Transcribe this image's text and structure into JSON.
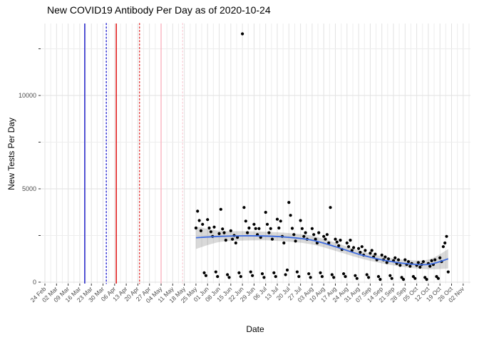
{
  "title": "New COVID19 Antibody Per Day as of 2020-10-24",
  "axes": {
    "x": {
      "label": "Date",
      "tick_labels": [
        "24 Feb",
        "02 Mar",
        "09 Mar",
        "16 Mar",
        "23 Mar",
        "30 Mar",
        "06 Apr",
        "13 Apr",
        "20 Apr",
        "27 Apr",
        "04 May",
        "11 May",
        "18 May",
        "25 May",
        "01 Jun",
        "08 Jun",
        "15 Jun",
        "22 Jun",
        "29 Jun",
        "06 Jul",
        "13 Jul",
        "20 Jul",
        "27 Jul",
        "03 Aug",
        "10 Aug",
        "17 Aug",
        "24 Aug",
        "31 Aug",
        "07 Sep",
        "14 Sep",
        "21 Sep",
        "28 Sep",
        "05 Oct",
        "12 Oct",
        "19 Oct",
        "26 Oct",
        "02 Nov"
      ]
    },
    "y": {
      "label": "New Tests Per Day",
      "tick_labels": [
        "0",
        "5000",
        "10000"
      ],
      "major_breaks": [
        0,
        5000,
        10000
      ],
      "minor_breaks": [
        2500,
        7500,
        12500
      ]
    }
  },
  "colors": {
    "point": "#000000",
    "smooth_line": "#3d6be0",
    "ci_band": "rgba(80,80,80,0.22)",
    "grid_major": "#e2e2e2",
    "grid_minor": "#ededed",
    "tick": "#333333",
    "tick_label": "#4d4d4d"
  },
  "event_lines": [
    {
      "name": "event-blue-solid",
      "date": "03-19",
      "color": "#1515c8",
      "style": "solid"
    },
    {
      "name": "event-blue-dotted",
      "date": "04-01",
      "color": "#2020d0",
      "style": "dotted"
    },
    {
      "name": "event-red-solid",
      "date": "04-07",
      "color": "#dd0000",
      "style": "solid"
    },
    {
      "name": "event-red-dotted",
      "date": "04-21",
      "color": "#e23b3b",
      "style": "dotted"
    },
    {
      "name": "event-pink-solid",
      "date": "05-04",
      "color": "#f9b4c0",
      "style": "solid"
    },
    {
      "name": "event-pink-dotted",
      "date": "05-17",
      "color": "#fbd0d8",
      "style": "dotted"
    }
  ],
  "chart_data": {
    "type": "scatter",
    "title": "New COVID19 Antibody Per Day as of 2020-10-24",
    "xlabel": "Date",
    "ylabel": "New Tests Per Day",
    "year": 2020,
    "x_range": [
      "02-24",
      "11-02"
    ],
    "ylim": [
      0,
      13900
    ],
    "grid": true,
    "points": [
      [
        "05-25",
        2900
      ],
      [
        "05-26",
        3800
      ],
      [
        "05-27",
        3300
      ],
      [
        "05-28",
        2750
      ],
      [
        "05-29",
        3100
      ],
      [
        "05-30",
        500
      ],
      [
        "05-31",
        350
      ],
      [
        "06-01",
        3350
      ],
      [
        "06-02",
        2900
      ],
      [
        "06-03",
        2700
      ],
      [
        "06-04",
        2450
      ],
      [
        "06-05",
        2950
      ],
      [
        "06-06",
        550
      ],
      [
        "06-07",
        300
      ],
      [
        "06-08",
        2600
      ],
      [
        "06-09",
        3900
      ],
      [
        "06-10",
        2850
      ],
      [
        "06-11",
        2650
      ],
      [
        "06-12",
        2250
      ],
      [
        "06-13",
        400
      ],
      [
        "06-14",
        250
      ],
      [
        "06-15",
        2750
      ],
      [
        "06-16",
        2300
      ],
      [
        "06-17",
        2500
      ],
      [
        "06-18",
        2100
      ],
      [
        "06-19",
        2400
      ],
      [
        "06-20",
        500
      ],
      [
        "06-21",
        300
      ],
      [
        "06-22",
        13300
      ],
      [
        "06-23",
        4000
      ],
      [
        "06-24",
        3270
      ],
      [
        "06-25",
        2650
      ],
      [
        "06-26",
        2900
      ],
      [
        "06-27",
        550
      ],
      [
        "06-28",
        350
      ],
      [
        "06-29",
        3100
      ],
      [
        "06-30",
        2870
      ],
      [
        "07-01",
        2550
      ],
      [
        "07-02",
        2870
      ],
      [
        "07-03",
        2400
      ],
      [
        "07-04",
        450
      ],
      [
        "07-05",
        250
      ],
      [
        "07-06",
        3740
      ],
      [
        "07-07",
        3100
      ],
      [
        "07-08",
        2650
      ],
      [
        "07-09",
        2870
      ],
      [
        "07-10",
        2300
      ],
      [
        "07-11",
        500
      ],
      [
        "07-12",
        300
      ],
      [
        "07-13",
        3370
      ],
      [
        "07-14",
        2900
      ],
      [
        "07-15",
        3270
      ],
      [
        "07-16",
        2450
      ],
      [
        "07-17",
        2100
      ],
      [
        "07-18",
        400
      ],
      [
        "07-19",
        650
      ],
      [
        "07-20",
        4270
      ],
      [
        "07-21",
        3580
      ],
      [
        "07-22",
        2880
      ],
      [
        "07-23",
        2550
      ],
      [
        "07-24",
        2200
      ],
      [
        "07-25",
        550
      ],
      [
        "07-26",
        300
      ],
      [
        "07-27",
        3300
      ],
      [
        "07-28",
        2870
      ],
      [
        "07-29",
        2450
      ],
      [
        "07-30",
        2650
      ],
      [
        "07-31",
        2300
      ],
      [
        "08-01",
        450
      ],
      [
        "08-02",
        250
      ],
      [
        "08-03",
        2870
      ],
      [
        "08-04",
        2550
      ],
      [
        "08-05",
        2300
      ],
      [
        "08-06",
        2100
      ],
      [
        "08-07",
        2650
      ],
      [
        "08-08",
        500
      ],
      [
        "08-09",
        300
      ],
      [
        "08-10",
        2450
      ],
      [
        "08-11",
        2300
      ],
      [
        "08-12",
        2550
      ],
      [
        "08-13",
        2100
      ],
      [
        "08-14",
        4000
      ],
      [
        "08-15",
        400
      ],
      [
        "08-16",
        250
      ],
      [
        "08-17",
        2300
      ],
      [
        "08-18",
        2150
      ],
      [
        "08-19",
        1950
      ],
      [
        "08-20",
        2250
      ],
      [
        "08-21",
        1750
      ],
      [
        "08-22",
        450
      ],
      [
        "08-23",
        300
      ],
      [
        "08-24",
        2100
      ],
      [
        "08-25",
        1900
      ],
      [
        "08-26",
        2250
      ],
      [
        "08-27",
        1700
      ],
      [
        "08-28",
        1850
      ],
      [
        "08-29",
        350
      ],
      [
        "08-30",
        200
      ],
      [
        "08-31",
        1800
      ],
      [
        "09-01",
        1600
      ],
      [
        "09-02",
        1900
      ],
      [
        "09-03",
        1450
      ],
      [
        "09-04",
        1700
      ],
      [
        "09-05",
        400
      ],
      [
        "09-06",
        250
      ],
      [
        "09-07",
        1550
      ],
      [
        "09-08",
        1700
      ],
      [
        "09-09",
        1350
      ],
      [
        "09-10",
        1500
      ],
      [
        "09-11",
        1200
      ],
      [
        "09-12",
        300
      ],
      [
        "09-13",
        150
      ],
      [
        "09-14",
        1450
      ],
      [
        "09-15",
        1200
      ],
      [
        "09-16",
        1350
      ],
      [
        "09-17",
        1050
      ],
      [
        "09-18",
        1250
      ],
      [
        "09-19",
        350
      ],
      [
        "09-20",
        200
      ],
      [
        "09-21",
        1150
      ],
      [
        "09-22",
        1300
      ],
      [
        "09-23",
        1000
      ],
      [
        "09-24",
        1200
      ],
      [
        "09-25",
        900
      ],
      [
        "09-26",
        250
      ],
      [
        "09-27",
        150
      ],
      [
        "09-28",
        1200
      ],
      [
        "09-29",
        950
      ],
      [
        "09-30",
        1100
      ],
      [
        "10-01",
        850
      ],
      [
        "10-02",
        1000
      ],
      [
        "10-03",
        300
      ],
      [
        "10-04",
        200
      ],
      [
        "10-05",
        900
      ],
      [
        "10-06",
        1050
      ],
      [
        "10-07",
        800
      ],
      [
        "10-08",
        950
      ],
      [
        "10-09",
        1100
      ],
      [
        "10-10",
        250
      ],
      [
        "10-11",
        150
      ],
      [
        "10-12",
        1000
      ],
      [
        "10-13",
        850
      ],
      [
        "10-14",
        1150
      ],
      [
        "10-15",
        950
      ],
      [
        "10-16",
        1200
      ],
      [
        "10-17",
        300
      ],
      [
        "10-18",
        200
      ],
      [
        "10-19",
        1300
      ],
      [
        "10-20",
        1100
      ],
      [
        "10-21",
        1900
      ],
      [
        "10-22",
        2100
      ],
      [
        "10-23",
        2450
      ],
      [
        "10-24",
        550
      ]
    ],
    "smooth": {
      "name": "loess-fit",
      "points": [
        [
          "05-25",
          2380
        ],
        [
          "06-08",
          2450
        ],
        [
          "06-22",
          2480
        ],
        [
          "07-06",
          2470
        ],
        [
          "07-20",
          2400
        ],
        [
          "08-03",
          2250
        ],
        [
          "08-17",
          1900
        ],
        [
          "08-31",
          1500
        ],
        [
          "09-14",
          1200
        ],
        [
          "09-28",
          1000
        ],
        [
          "10-12",
          950
        ],
        [
          "10-24",
          1250
        ]
      ],
      "ci_halfwidths": [
        600,
        300,
        250,
        230,
        230,
        230,
        220,
        200,
        190,
        200,
        260,
        520
      ]
    }
  }
}
